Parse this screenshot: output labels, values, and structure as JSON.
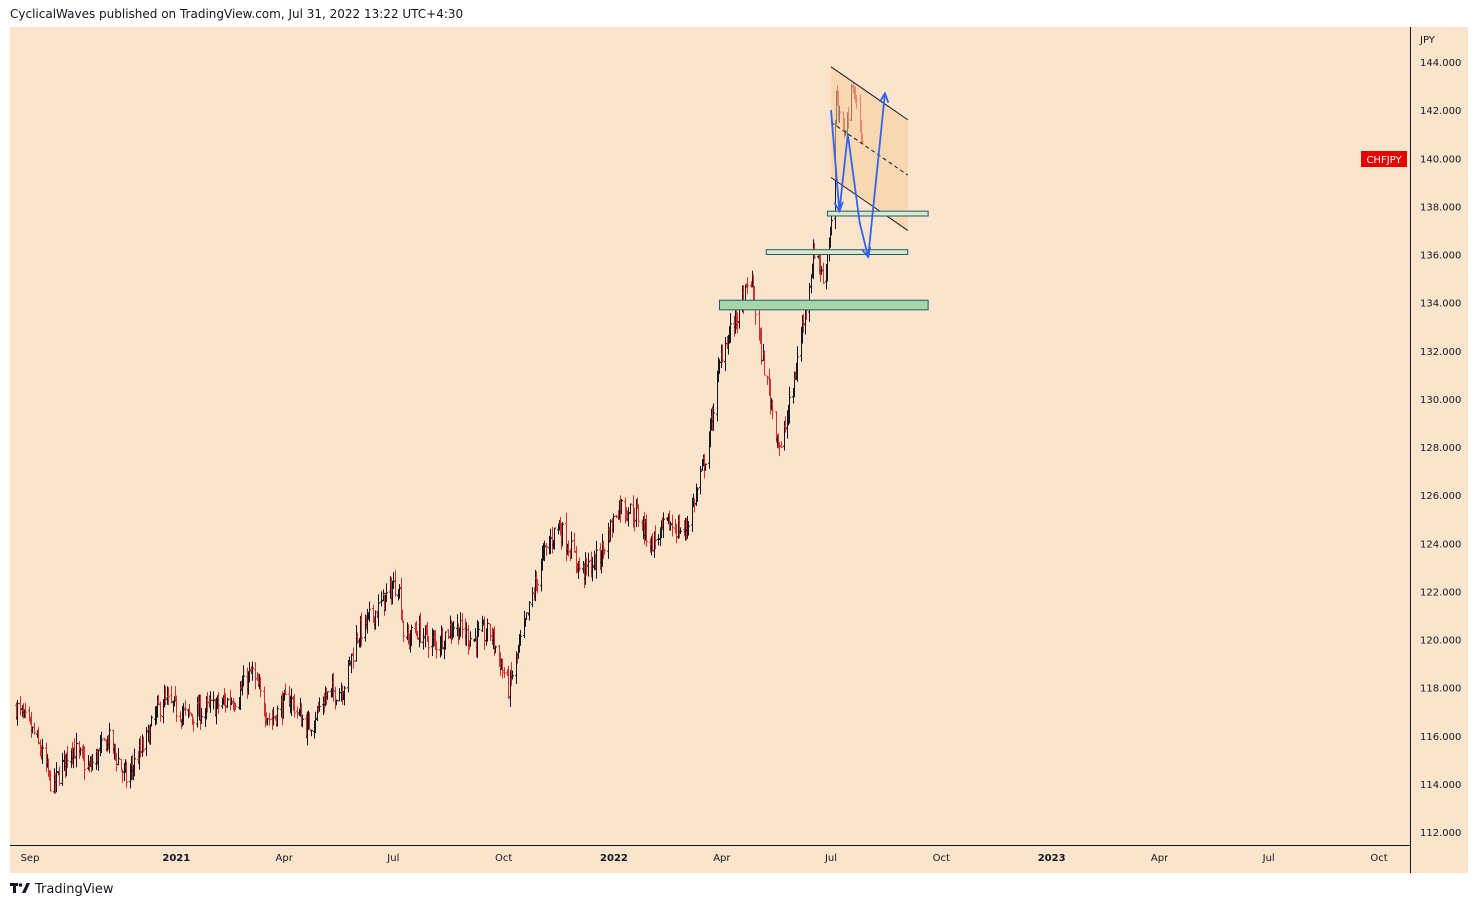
{
  "header": {
    "text": "CyclicalWaves published on TradingView.com, Jul 31, 2022 13:22 UTC+4:30"
  },
  "footer": {
    "brand": "TradingView"
  },
  "colors": {
    "background": "#fae5cc",
    "up": "#131722",
    "down": "#d32f2f",
    "zone_fill": "#a5d6a7",
    "zone_fill_alt": "#dbe8c8",
    "zone_border": "#1e5b74",
    "channel": "#131722",
    "channel_fill": "#f6cc9a",
    "arrow": "#2f63f0",
    "symbol_badge": "#e60000"
  },
  "chart_data": {
    "type": "candlestick",
    "symbol": "CHFJPY",
    "unit": "JPY",
    "y_ticks": [
      "144.000",
      "142.000",
      "140.000",
      "138.000",
      "136.000",
      "134.000",
      "132.000",
      "130.000",
      "128.000",
      "126.000",
      "124.000",
      "122.000",
      "120.000",
      "118.000",
      "116.000",
      "114.000",
      "112.000"
    ],
    "x_ticks": [
      {
        "label": "Sep",
        "bold": false
      },
      {
        "label": "2021",
        "bold": true
      },
      {
        "label": "Apr",
        "bold": false
      },
      {
        "label": "Jul",
        "bold": false
      },
      {
        "label": "Oct",
        "bold": false
      },
      {
        "label": "2022",
        "bold": true
      },
      {
        "label": "Apr",
        "bold": false
      },
      {
        "label": "Jul",
        "bold": false
      },
      {
        "label": "Oct",
        "bold": false
      },
      {
        "label": "2023",
        "bold": true
      },
      {
        "label": "Apr",
        "bold": false
      },
      {
        "label": "Jul",
        "bold": false
      },
      {
        "label": "Oct",
        "bold": false
      }
    ],
    "ylim": [
      111.5,
      145.5
    ],
    "last_price_label": "CHFJPY",
    "last_price": 140.0,
    "path": [
      [
        "2020-08-20",
        117.2
      ],
      [
        "2020-09-05",
        116.0
      ],
      [
        "2020-09-20",
        113.8
      ],
      [
        "2020-10-05",
        115.6
      ],
      [
        "2020-10-20",
        114.6
      ],
      [
        "2020-11-05",
        115.9
      ],
      [
        "2020-11-20",
        114.2
      ],
      [
        "2020-12-05",
        115.6
      ],
      [
        "2020-12-20",
        117.5
      ],
      [
        "2021-01-10",
        116.8
      ],
      [
        "2021-02-01",
        117.2
      ],
      [
        "2021-02-20",
        117.6
      ],
      [
        "2021-03-05",
        118.6
      ],
      [
        "2021-03-20",
        116.6
      ],
      [
        "2021-04-05",
        117.6
      ],
      [
        "2021-04-20",
        116.3
      ],
      [
        "2021-05-05",
        117.6
      ],
      [
        "2021-05-20",
        118.0
      ],
      [
        "2021-06-01",
        120.2
      ],
      [
        "2021-06-20",
        121.4
      ],
      [
        "2021-07-05",
        122.5
      ],
      [
        "2021-07-10",
        119.8
      ],
      [
        "2021-07-20",
        120.4
      ],
      [
        "2021-08-05",
        119.8
      ],
      [
        "2021-08-20",
        120.6
      ],
      [
        "2021-09-05",
        120.0
      ],
      [
        "2021-09-20",
        120.3
      ],
      [
        "2021-10-05",
        118.0
      ],
      [
        "2021-10-20",
        120.8
      ],
      [
        "2021-11-01",
        123.2
      ],
      [
        "2021-11-15",
        124.8
      ],
      [
        "2021-12-05",
        122.8
      ],
      [
        "2021-12-20",
        123.4
      ],
      [
        "2022-01-05",
        125.6
      ],
      [
        "2022-01-20",
        125.2
      ],
      [
        "2022-02-01",
        124.0
      ],
      [
        "2022-02-15",
        124.8
      ],
      [
        "2022-03-01",
        124.5
      ],
      [
        "2022-03-10",
        126.0
      ],
      [
        "2022-03-20",
        128.0
      ],
      [
        "2022-04-01",
        132.0
      ],
      [
        "2022-04-15",
        133.6
      ],
      [
        "2022-04-25",
        135.0
      ],
      [
        "2022-05-05",
        131.6
      ],
      [
        "2022-05-15",
        129.0
      ],
      [
        "2022-05-20",
        127.8
      ],
      [
        "2022-06-01",
        131.0
      ],
      [
        "2022-06-10",
        134.0
      ],
      [
        "2022-06-18",
        136.5
      ],
      [
        "2022-06-25",
        134.6
      ],
      [
        "2022-07-01",
        137.6
      ],
      [
        "2022-07-05",
        142.5
      ],
      [
        "2022-07-10",
        140.8
      ],
      [
        "2022-07-20",
        143.0
      ],
      [
        "2022-07-28",
        140.2
      ]
    ],
    "zones": [
      {
        "from": "2022-06-28",
        "to": "2022-09-20",
        "low": 137.6,
        "high": 137.8
      },
      {
        "from": "2022-05-08",
        "to": "2022-09-03",
        "low": 136.0,
        "high": 136.2
      },
      {
        "from": "2022-03-30",
        "to": "2022-09-20",
        "low": 133.7,
        "high": 134.1
      }
    ],
    "channel": {
      "upper": [
        [
          "2022-07-01",
          143.8
        ],
        [
          "2022-09-03",
          141.6
        ]
      ],
      "lower": [
        [
          "2022-07-01",
          139.2
        ],
        [
          "2022-09-03",
          137.0
        ]
      ],
      "mid": [
        [
          "2022-07-01",
          141.5
        ],
        [
          "2022-09-03",
          139.3
        ]
      ]
    },
    "projection": [
      [
        "2022-07-01",
        142.0
      ],
      [
        "2022-07-08",
        137.8
      ],
      [
        "2022-07-15",
        141.0
      ],
      [
        "2022-07-25",
        137.3
      ],
      [
        "2022-08-01",
        135.9
      ],
      [
        "2022-08-15",
        142.7
      ]
    ]
  }
}
